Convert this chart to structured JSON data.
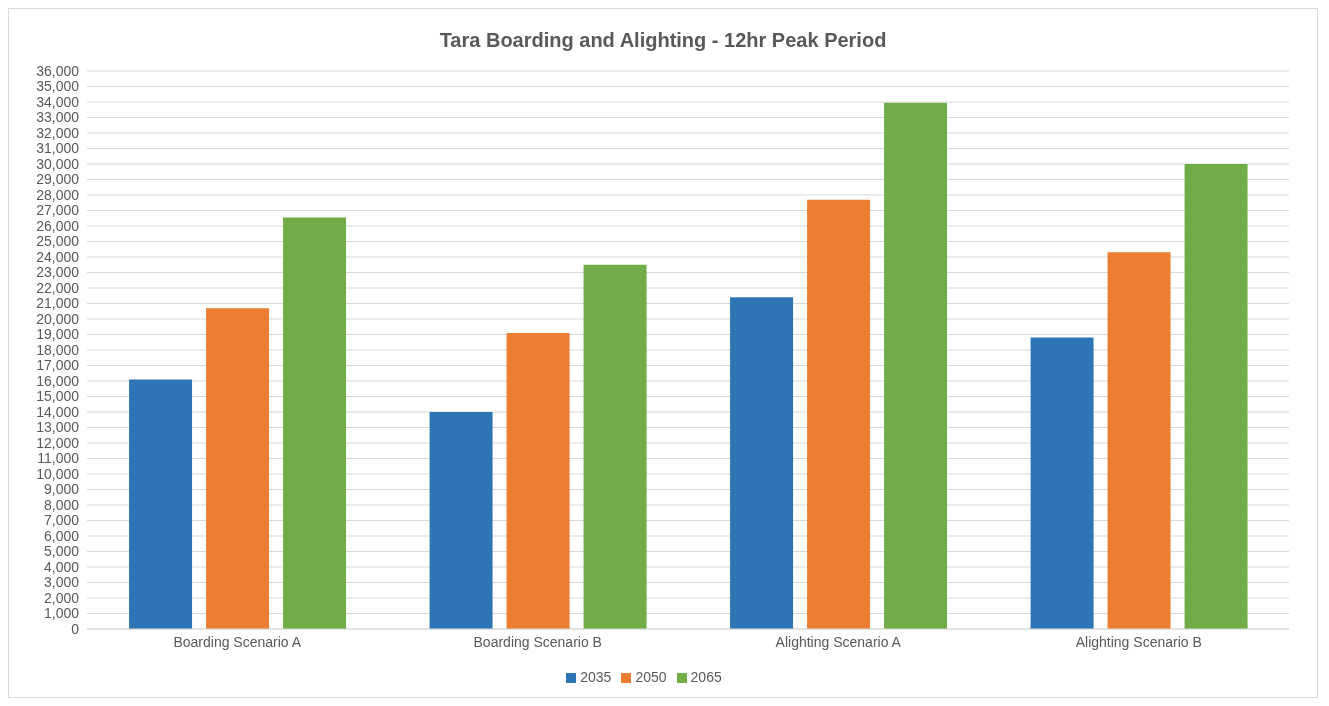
{
  "chart_data": {
    "type": "bar",
    "title": "Tara Boarding and Alighting - 12hr Peak Period",
    "categories": [
      "Boarding Scenario A",
      "Boarding Scenario B",
      "Alighting Scenario A",
      "Alighting Scenario B"
    ],
    "series": [
      {
        "name": "2035",
        "color": "#2e75b6",
        "values": [
          16100,
          14000,
          21400,
          18800
        ]
      },
      {
        "name": "2050",
        "color": "#ed7d31",
        "values": [
          20700,
          19100,
          27700,
          24300
        ]
      },
      {
        "name": "2065",
        "color": "#70ad47",
        "values": [
          26550,
          23500,
          33950,
          30000
        ]
      }
    ],
    "ylim": [
      0,
      36000
    ],
    "yticks": [
      0,
      {
        "value": 1000,
        "label": "1,000"
      },
      {
        "value": 2000,
        "label": "2,000"
      },
      {
        "value": 3000,
        "label": "3,000"
      },
      {
        "value": 4000,
        "label": "4,000"
      },
      {
        "value": 5000,
        "label": "5,000"
      },
      {
        "value": 6000,
        "label": "6,000"
      },
      {
        "value": 7000,
        "label": "7,000"
      },
      {
        "value": 8000,
        "label": "8,000"
      },
      {
        "value": 9000,
        "label": "9,000"
      },
      {
        "value": 10000,
        "label": "10,000"
      },
      {
        "value": 11000,
        "label": "11,000"
      },
      {
        "value": 12000,
        "label": "12,000"
      },
      {
        "value": 13000,
        "label": "13,000"
      },
      {
        "value": 14000,
        "label": "14,000"
      },
      {
        "value": 15000,
        "label": "15,000"
      },
      {
        "value": 16000,
        "label": "16,000"
      },
      {
        "value": 17000,
        "label": "17,000"
      },
      {
        "value": 18000,
        "label": "18,000"
      },
      {
        "value": 19000,
        "label": "19,000"
      },
      {
        "value": 20000,
        "label": "20,000"
      },
      {
        "value": 21000,
        "label": "21,000"
      },
      {
        "value": 22000,
        "label": "22,000"
      },
      {
        "value": 23000,
        "label": "23,000"
      },
      {
        "value": 24000,
        "label": "24,000"
      },
      {
        "value": 25000,
        "label": "25,000"
      },
      {
        "value": 26000,
        "label": "26,000"
      },
      {
        "value": 27000,
        "label": "27,000"
      },
      {
        "value": 28000,
        "label": "28,000"
      },
      {
        "value": 29000,
        "label": "29,000"
      },
      {
        "value": 30000,
        "label": "30,000"
      },
      {
        "value": 31000,
        "label": "31,000"
      },
      {
        "value": 32000,
        "label": "32,000"
      },
      {
        "value": 33000,
        "label": "33,000"
      },
      {
        "value": 34000,
        "label": "34,000"
      },
      {
        "value": 35000,
        "label": "35,000"
      },
      {
        "value": 36000,
        "label": "36,000"
      }
    ],
    "grid": "y",
    "legend": "bottom"
  }
}
